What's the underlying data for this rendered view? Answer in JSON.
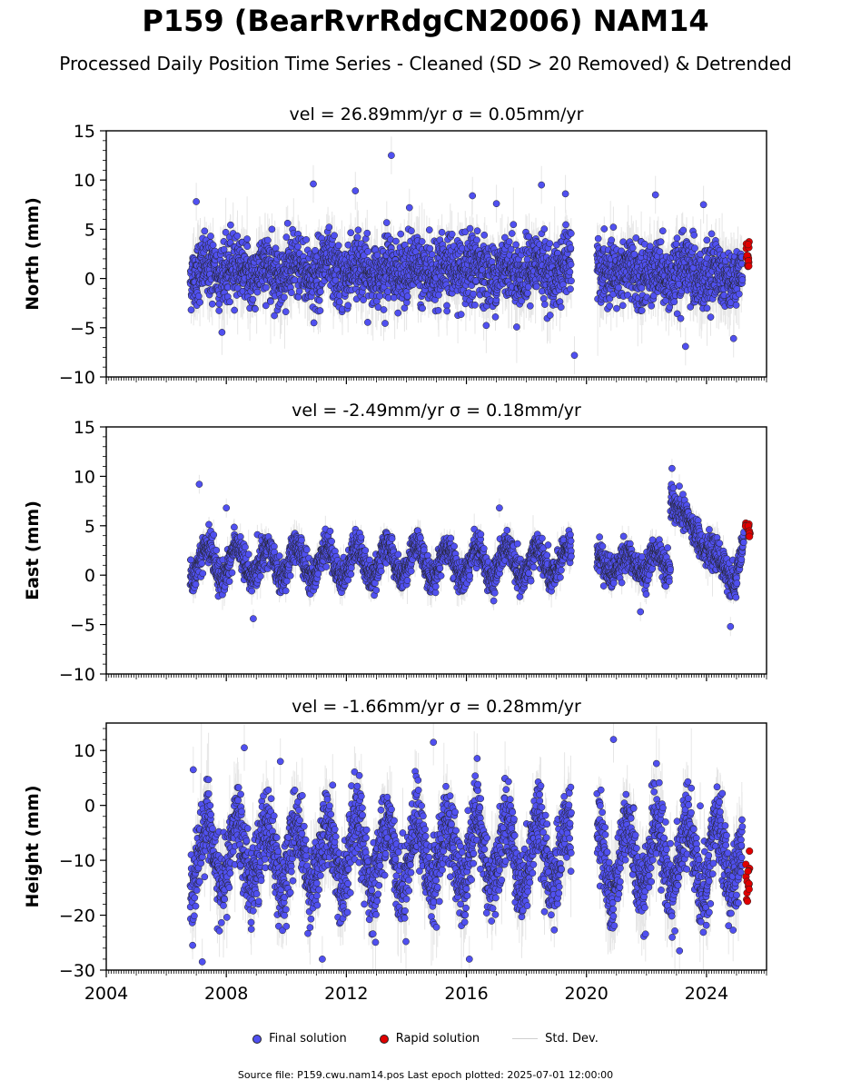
{
  "title": "P159 (BearRvrRdgCN2006) NAM14",
  "subtitle": "Processed Daily Position Time Series - Cleaned (SD > 20 Removed) & Detrended",
  "colors": {
    "final": "#5050f0",
    "rapid": "#e00000",
    "stddev": "#c8c8c8",
    "edge": "#222222"
  },
  "legend": {
    "final": "Final solution",
    "rapid": "Rapid solution",
    "stddev": "Std. Dev."
  },
  "footer": "Source file: P159.cwu.nam14.pos  Last epoch plotted: 2025-07-01 12:00:00",
  "chart_data": [
    {
      "type": "scatter",
      "title": "vel = 26.89mm/yr   σ = 0.05mm/yr",
      "ylabel": "North (mm)",
      "xlim": [
        2004,
        2026
      ],
      "ylim": [
        -10,
        15
      ],
      "yticks": [
        -10,
        -5,
        0,
        5,
        10,
        15
      ],
      "xticks": [
        2004,
        2008,
        2012,
        2016,
        2020,
        2024
      ],
      "show_xtick_labels": false,
      "segments": [
        {
          "start": 2006.8,
          "end": 2019.5,
          "mean": 0.8,
          "amp": 0.7,
          "trend": 0.0
        },
        {
          "start": 2020.35,
          "end": 2025.2,
          "mean": 0.5,
          "amp": 0.6,
          "trend": 0.0
        }
      ],
      "noise": 1.6,
      "outliers": [
        [
          2013.5,
          12.5
        ],
        [
          2010.9,
          9.6
        ],
        [
          2012.3,
          8.9
        ],
        [
          2018.5,
          9.5
        ],
        [
          2019.3,
          8.6
        ],
        [
          2022.3,
          8.5
        ],
        [
          2023.9,
          7.5
        ],
        [
          2023.3,
          -6.9
        ],
        [
          2024.9,
          -6.1
        ],
        [
          2019.6,
          -7.8
        ],
        [
          2014.1,
          7.2
        ],
        [
          2017.0,
          7.6
        ],
        [
          2016.2,
          8.4
        ],
        [
          2007.0,
          7.8
        ]
      ],
      "rapid": {
        "start": 2025.3,
        "end": 2025.45,
        "mean": 2.7,
        "spread": 1.6
      }
    },
    {
      "type": "scatter",
      "title": "vel = -2.49mm/yr   σ = 0.18mm/yr",
      "ylabel": "East (mm)",
      "xlim": [
        2004,
        2026
      ],
      "ylim": [
        -10,
        15
      ],
      "yticks": [
        -10,
        -5,
        0,
        5,
        10,
        15
      ],
      "xticks": [
        2004,
        2008,
        2012,
        2016,
        2020,
        2024
      ],
      "show_xtick_labels": false,
      "segments": [
        {
          "start": 2006.8,
          "end": 2019.5,
          "mean": 1.3,
          "amp": 1.6,
          "trend": 0.0
        },
        {
          "start": 2020.35,
          "end": 2022.8,
          "mean": 1.2,
          "amp": 1.0,
          "trend": 0.0
        },
        {
          "start": 2022.8,
          "end": 2024.9,
          "mean": 7.5,
          "amp": 0.3,
          "trend": -3.8
        },
        {
          "start": 2024.9,
          "end": 2025.25,
          "mean": -1.5,
          "amp": 0.0,
          "trend": 14.0
        }
      ],
      "noise": 0.8,
      "outliers": [
        [
          2007.1,
          9.2
        ],
        [
          2008.0,
          6.8
        ],
        [
          2008.9,
          -4.4
        ],
        [
          2017.1,
          6.8
        ],
        [
          2022.85,
          10.8
        ],
        [
          2024.8,
          -5.2
        ],
        [
          2021.8,
          -3.7
        ]
      ],
      "rapid": {
        "start": 2025.3,
        "end": 2025.45,
        "mean": 4.5,
        "spread": 0.8
      }
    },
    {
      "type": "scatter",
      "title": "vel = -1.66mm/yr   σ = 0.28mm/yr",
      "ylabel": "Height (mm)",
      "xlim": [
        2004,
        2026
      ],
      "ylim": [
        -30,
        15
      ],
      "yticks": [
        -30,
        -20,
        -10,
        0,
        10
      ],
      "xticks": [
        2004,
        2008,
        2012,
        2016,
        2020,
        2024
      ],
      "show_xtick_labels": true,
      "segments": [
        {
          "start": 2006.8,
          "end": 2019.5,
          "mean": -9.0,
          "amp": 6.0,
          "trend": 0.0
        },
        {
          "start": 2020.35,
          "end": 2025.2,
          "mean": -9.5,
          "amp": 6.0,
          "trend": 0.0
        }
      ],
      "noise": 3.5,
      "outliers": [
        [
          2008.6,
          10.5
        ],
        [
          2009.8,
          8.0
        ],
        [
          2014.9,
          11.5
        ],
        [
          2020.9,
          12.0
        ],
        [
          2007.2,
          -28.5
        ],
        [
          2011.2,
          -28.0
        ],
        [
          2016.1,
          -28.0
        ],
        [
          2023.1,
          -26.5
        ],
        [
          2006.9,
          6.5
        ]
      ],
      "rapid": {
        "start": 2025.3,
        "end": 2025.45,
        "mean": -12.0,
        "spread": 5.5
      }
    }
  ]
}
